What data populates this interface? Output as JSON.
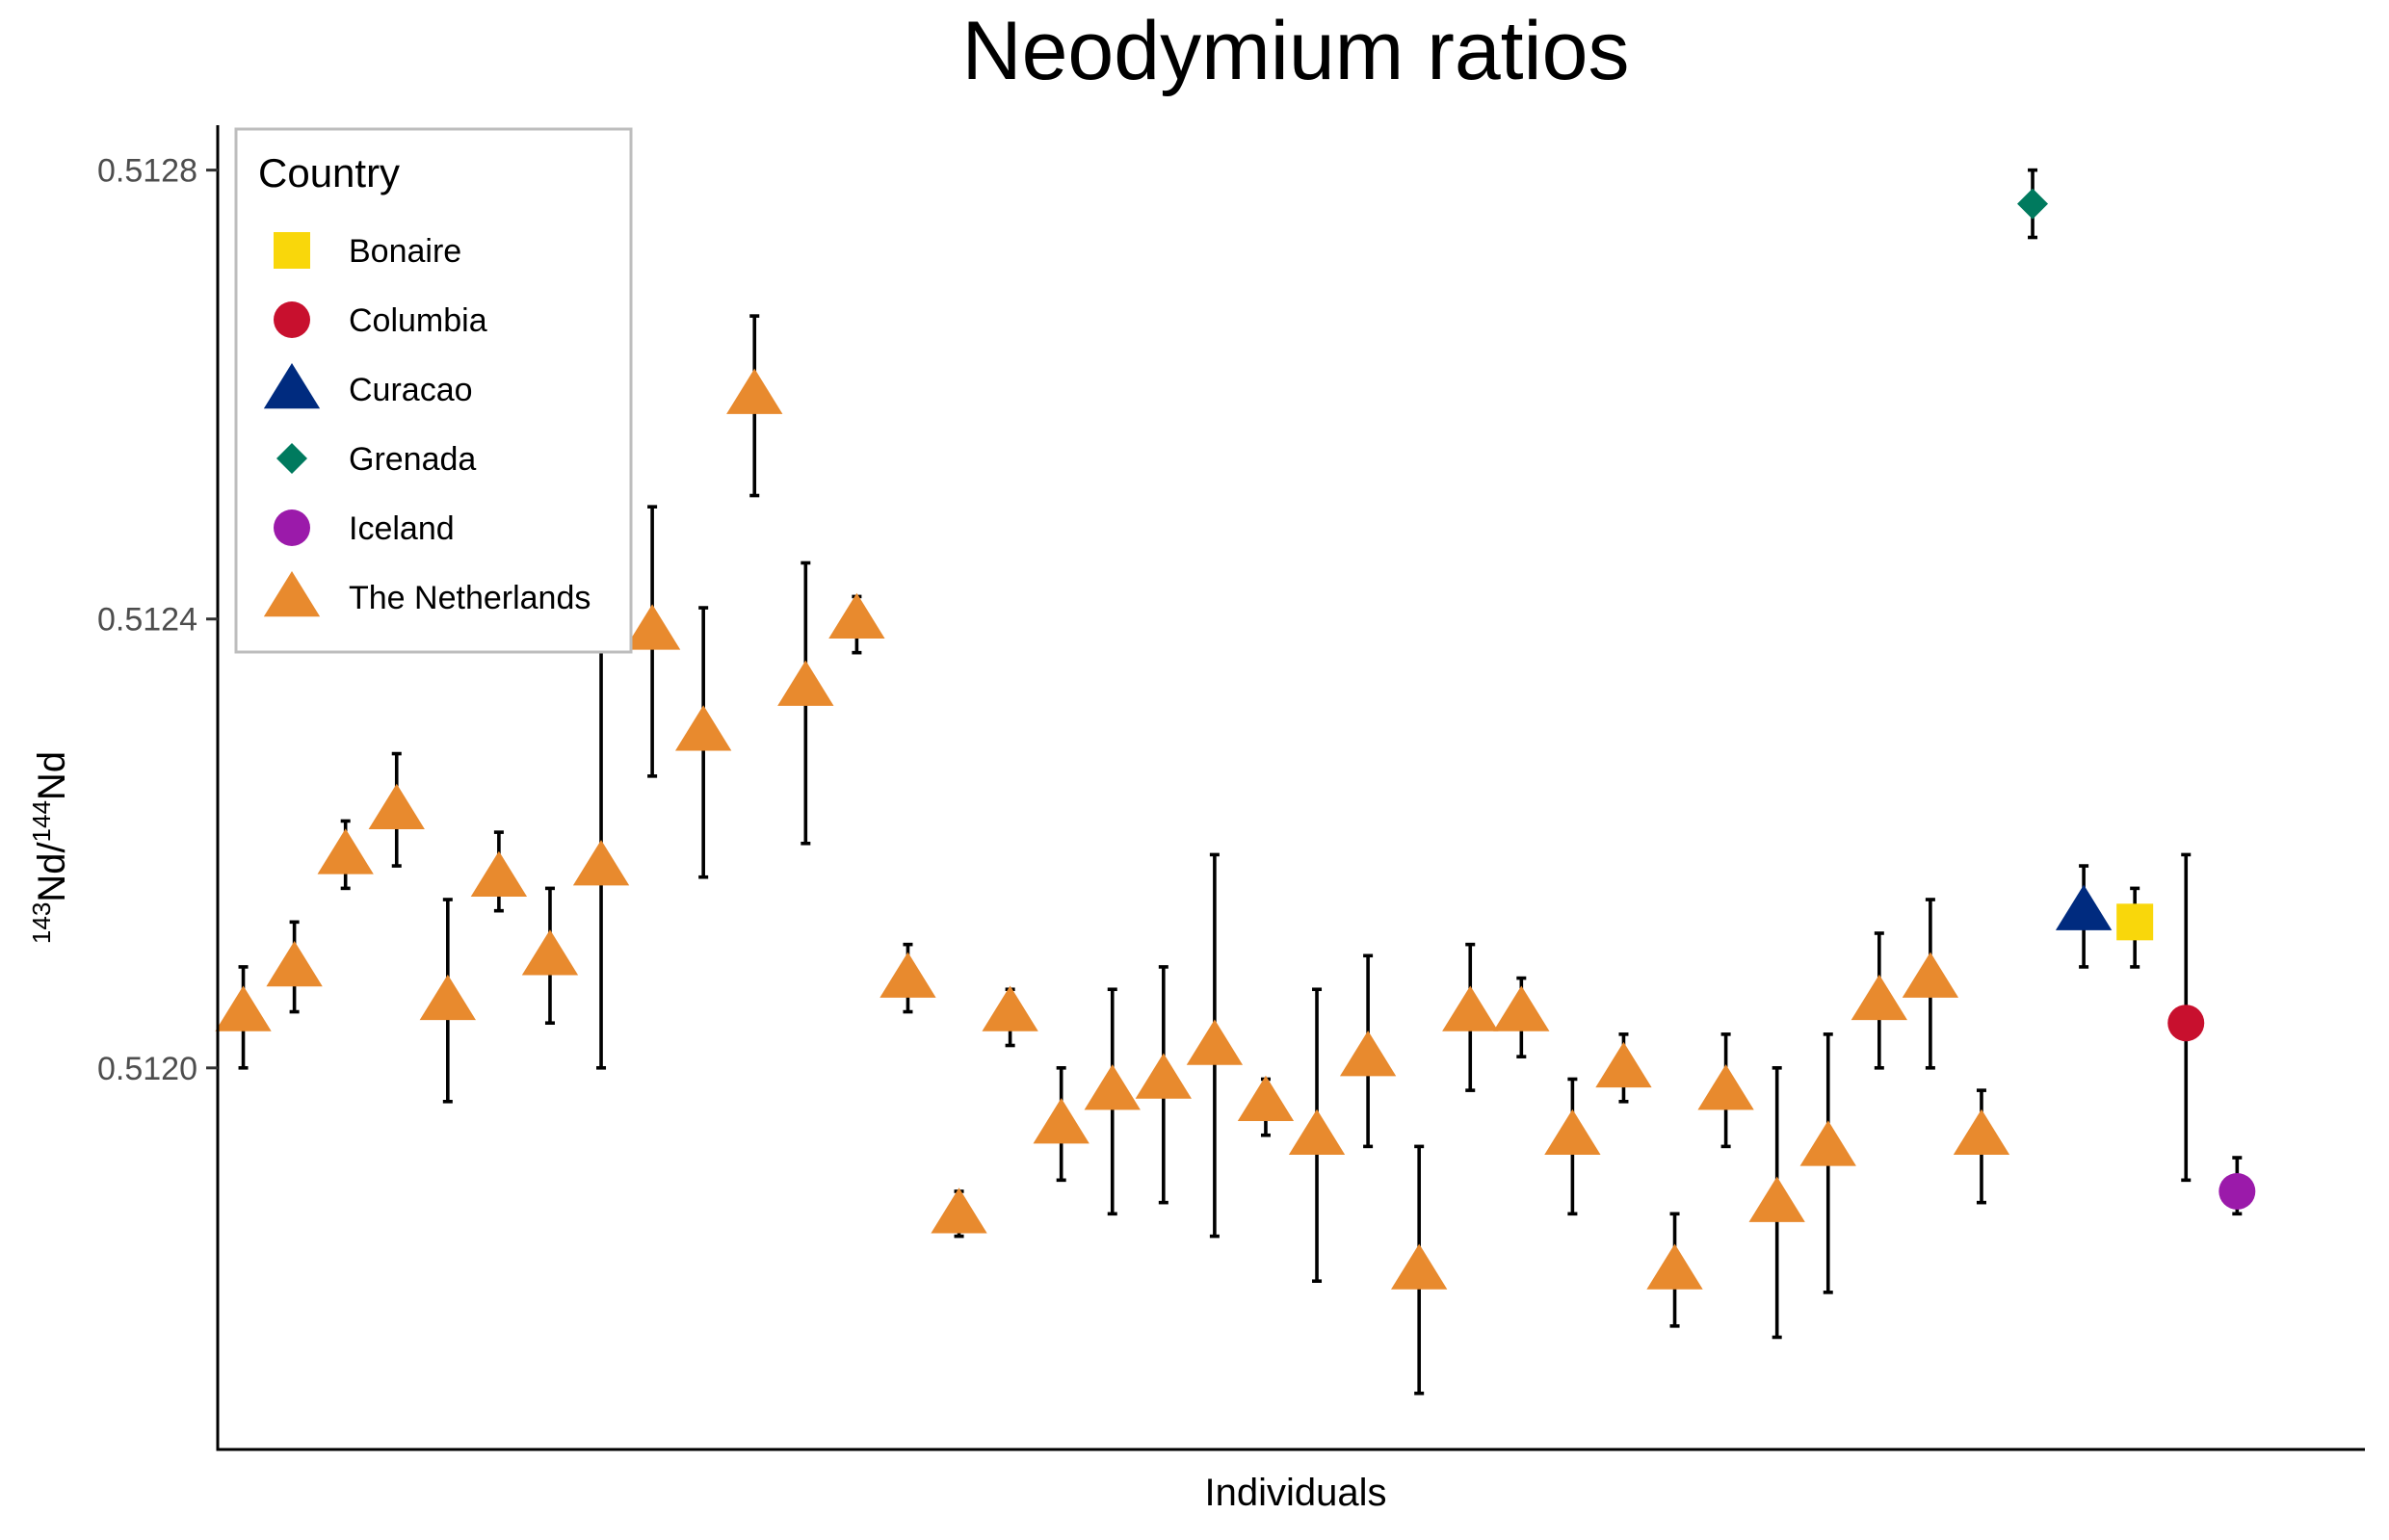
{
  "chart_data": {
    "type": "scatter",
    "title": "Neodymium ratios",
    "xlabel": "Individuals",
    "ylabel": {
      "mass_a": "143",
      "element_a": "Nd/",
      "mass_b": "144",
      "element_b": "Nd"
    },
    "ylim": [
      0.51166,
      0.51284
    ],
    "yticks": [
      "0.5120",
      "0.5124",
      "0.5128"
    ],
    "xlim": [
      0.5,
      42.5
    ],
    "grid": false,
    "legend": {
      "title": "Country",
      "position": "top-left",
      "entries": [
        {
          "label": "Bonaire",
          "shape": "square",
          "color": "#F9D70B"
        },
        {
          "label": "Columbia",
          "shape": "circle",
          "color": "#C8102E"
        },
        {
          "label": "Curacao",
          "shape": "triangle",
          "color": "#002B7F"
        },
        {
          "label": "Grenada",
          "shape": "diamond",
          "color": "#007A5E"
        },
        {
          "label": "Iceland",
          "shape": "circle",
          "color": "#9B1AAA"
        },
        {
          "label": "The Netherlands",
          "shape": "triangle",
          "color": "#E88A2E"
        }
      ]
    },
    "points": [
      {
        "x": 1,
        "y": 0.51205,
        "lo": 0.512,
        "hi": 0.51209,
        "country": "The Netherlands"
      },
      {
        "x": 2,
        "y": 0.51209,
        "lo": 0.51205,
        "hi": 0.51213,
        "country": "The Netherlands"
      },
      {
        "x": 3,
        "y": 0.51219,
        "lo": 0.51216,
        "hi": 0.51222,
        "country": "The Netherlands"
      },
      {
        "x": 4,
        "y": 0.51223,
        "lo": 0.51218,
        "hi": 0.51228,
        "country": "The Netherlands"
      },
      {
        "x": 5,
        "y": 0.51206,
        "lo": 0.51197,
        "hi": 0.51215,
        "country": "The Netherlands"
      },
      {
        "x": 6,
        "y": 0.51217,
        "lo": 0.51214,
        "hi": 0.51221,
        "country": "The Netherlands"
      },
      {
        "x": 7,
        "y": 0.5121,
        "lo": 0.51204,
        "hi": 0.51216,
        "country": "The Netherlands"
      },
      {
        "x": 8,
        "y": 0.51218,
        "lo": 0.512,
        "hi": 0.51238,
        "country": "The Netherlands"
      },
      {
        "x": 9,
        "y": 0.51239,
        "lo": 0.51226,
        "hi": 0.5125,
        "country": "The Netherlands"
      },
      {
        "x": 10,
        "y": 0.5123,
        "lo": 0.51217,
        "hi": 0.51241,
        "country": "The Netherlands"
      },
      {
        "x": 11,
        "y": 0.5126,
        "lo": 0.51251,
        "hi": 0.51267,
        "country": "The Netherlands"
      },
      {
        "x": 12,
        "y": 0.51234,
        "lo": 0.5122,
        "hi": 0.51245,
        "country": "The Netherlands"
      },
      {
        "x": 13,
        "y": 0.5124,
        "lo": 0.51237,
        "hi": 0.51242,
        "country": "The Netherlands"
      },
      {
        "x": 14,
        "y": 0.51208,
        "lo": 0.51205,
        "hi": 0.51211,
        "country": "The Netherlands"
      },
      {
        "x": 15,
        "y": 0.51187,
        "lo": 0.51185,
        "hi": 0.51189,
        "country": "The Netherlands"
      },
      {
        "x": 16,
        "y": 0.51205,
        "lo": 0.51202,
        "hi": 0.51207,
        "country": "The Netherlands"
      },
      {
        "x": 17,
        "y": 0.51195,
        "lo": 0.5119,
        "hi": 0.512,
        "country": "The Netherlands"
      },
      {
        "x": 18,
        "y": 0.51198,
        "lo": 0.51187,
        "hi": 0.51207,
        "country": "The Netherlands"
      },
      {
        "x": 19,
        "y": 0.51199,
        "lo": 0.51188,
        "hi": 0.51209,
        "country": "The Netherlands"
      },
      {
        "x": 20,
        "y": 0.51202,
        "lo": 0.51185,
        "hi": 0.51219,
        "country": "The Netherlands"
      },
      {
        "x": 21,
        "y": 0.51197,
        "lo": 0.51194,
        "hi": 0.51199,
        "country": "The Netherlands"
      },
      {
        "x": 22,
        "y": 0.51194,
        "lo": 0.51181,
        "hi": 0.51207,
        "country": "The Netherlands"
      },
      {
        "x": 23,
        "y": 0.51201,
        "lo": 0.51193,
        "hi": 0.5121,
        "country": "The Netherlands"
      },
      {
        "x": 24,
        "y": 0.51182,
        "lo": 0.51171,
        "hi": 0.51193,
        "country": "The Netherlands"
      },
      {
        "x": 25,
        "y": 0.51205,
        "lo": 0.51198,
        "hi": 0.51211,
        "country": "The Netherlands"
      },
      {
        "x": 26,
        "y": 0.51205,
        "lo": 0.51201,
        "hi": 0.51208,
        "country": "The Netherlands"
      },
      {
        "x": 27,
        "y": 0.51194,
        "lo": 0.51187,
        "hi": 0.51199,
        "country": "The Netherlands"
      },
      {
        "x": 28,
        "y": 0.512,
        "lo": 0.51197,
        "hi": 0.51203,
        "country": "The Netherlands"
      },
      {
        "x": 29,
        "y": 0.51182,
        "lo": 0.51177,
        "hi": 0.51187,
        "country": "The Netherlands"
      },
      {
        "x": 30,
        "y": 0.51198,
        "lo": 0.51193,
        "hi": 0.51203,
        "country": "The Netherlands"
      },
      {
        "x": 31,
        "y": 0.51188,
        "lo": 0.51176,
        "hi": 0.512,
        "country": "The Netherlands"
      },
      {
        "x": 32,
        "y": 0.51193,
        "lo": 0.5118,
        "hi": 0.51203,
        "country": "The Netherlands"
      },
      {
        "x": 33,
        "y": 0.51206,
        "lo": 0.512,
        "hi": 0.51212,
        "country": "The Netherlands"
      },
      {
        "x": 34,
        "y": 0.51208,
        "lo": 0.512,
        "hi": 0.51215,
        "country": "The Netherlands"
      },
      {
        "x": 35,
        "y": 0.51194,
        "lo": 0.51188,
        "hi": 0.51198,
        "country": "The Netherlands"
      },
      {
        "x": 36,
        "y": 0.51277,
        "lo": 0.51274,
        "hi": 0.5128,
        "country": "Grenada"
      },
      {
        "x": 37,
        "y": 0.51214,
        "lo": 0.51209,
        "hi": 0.51218,
        "country": "Curacao"
      },
      {
        "x": 38,
        "y": 0.51213,
        "lo": 0.51209,
        "hi": 0.51216,
        "country": "Bonaire"
      },
      {
        "x": 39,
        "y": 0.51204,
        "lo": 0.5119,
        "hi": 0.51219,
        "country": "Columbia"
      },
      {
        "x": 40,
        "y": 0.51189,
        "lo": 0.51187,
        "hi": 0.51192,
        "country": "Iceland"
      }
    ]
  }
}
